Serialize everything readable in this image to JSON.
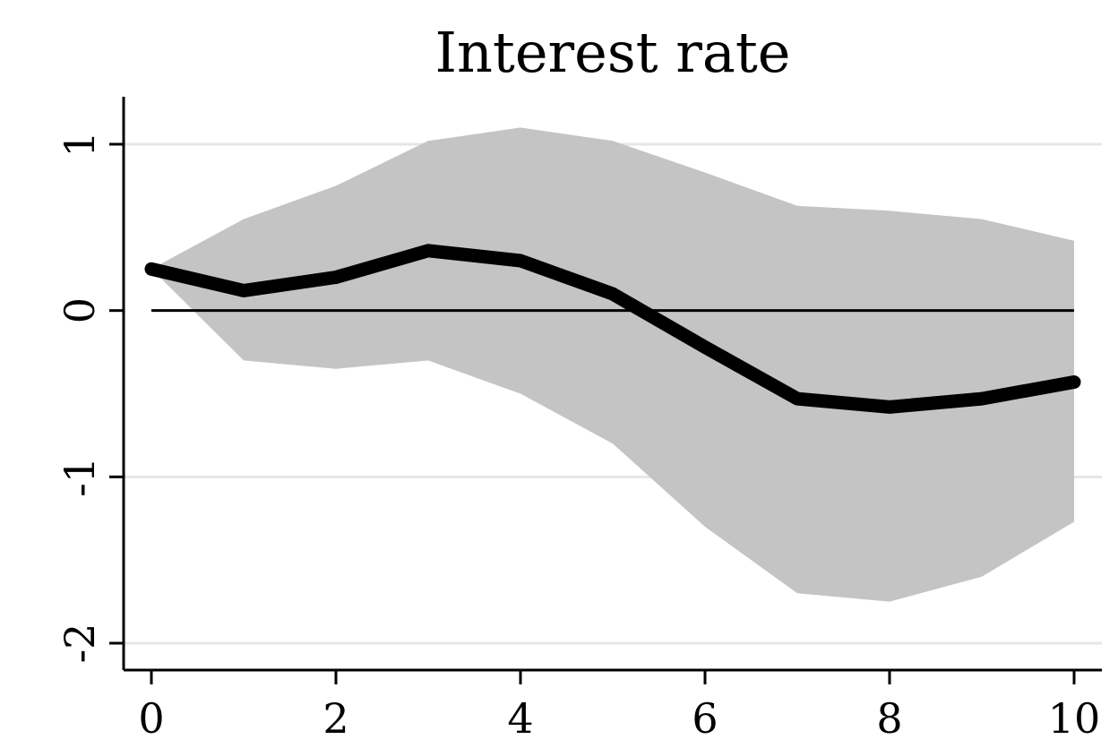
{
  "chart_data": {
    "type": "line",
    "title": "Interest rate",
    "xlabel": "",
    "ylabel": "",
    "x": [
      0,
      1,
      2,
      3,
      4,
      5,
      6,
      7,
      8,
      9,
      10
    ],
    "series": [
      {
        "values": [
          0.25,
          0.12,
          0.2,
          0.36,
          0.3,
          0.1,
          -0.22,
          -0.53,
          -0.58,
          -0.53,
          -0.43
        ],
        "color": "#000000"
      }
    ],
    "band": {
      "lower": [
        0.25,
        -0.3,
        -0.35,
        -0.3,
        -0.5,
        -0.8,
        -1.3,
        -1.7,
        -1.75,
        -1.6,
        -1.27
      ],
      "upper": [
        0.25,
        0.55,
        0.75,
        1.02,
        1.1,
        1.02,
        0.83,
        0.63,
        0.6,
        0.55,
        0.42
      ],
      "color": "#c4c4c4"
    },
    "reference_line": 0,
    "xlim": [
      0,
      10
    ],
    "ylim": [
      -2,
      1
    ],
    "xticks": [
      0,
      2,
      4,
      6,
      8,
      10
    ],
    "yticks": [
      -2,
      -1,
      0,
      1
    ],
    "xtick_labels": [
      "0",
      "2",
      "4",
      "6",
      "8",
      "10"
    ],
    "ytick_labels": [
      "-2",
      "-1",
      "0",
      "1"
    ],
    "grid": "horizontal",
    "legend": "none",
    "colors": {
      "line": "#000000",
      "band": "#c4c4c4",
      "grid": "#e6e6e6",
      "axis": "#000000"
    }
  }
}
